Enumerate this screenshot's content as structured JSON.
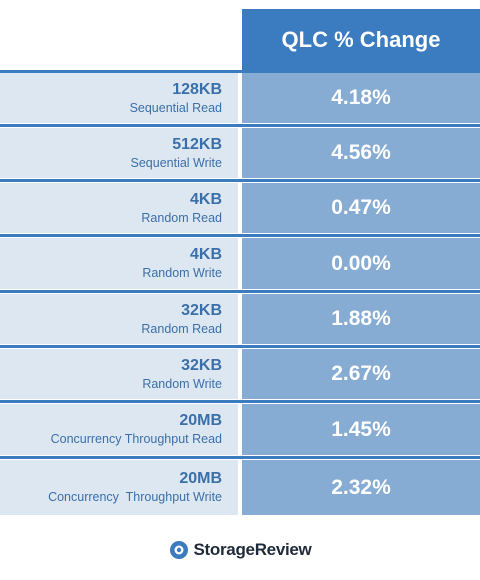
{
  "chart_data": {
    "type": "table",
    "header": "QLC % Change",
    "rows": [
      {
        "size": "128KB",
        "workload": "Sequential Read",
        "value": "4.18%"
      },
      {
        "size": "512KB",
        "workload": "Sequential Write",
        "value": "4.56%"
      },
      {
        "size": "4KB",
        "workload": "Random Read",
        "value": "0.47%"
      },
      {
        "size": "4KB",
        "workload": "Random Write",
        "value": "0.00%"
      },
      {
        "size": "32KB",
        "workload": "Random Read",
        "value": "1.88%"
      },
      {
        "size": "32KB",
        "workload": "Random Write",
        "value": "2.67%"
      },
      {
        "size": "20MB",
        "workload": "Concurrency Throughput Read",
        "value": "1.45%"
      },
      {
        "size": "20MB",
        "workload": "Concurrency  Throughput Write",
        "value": "2.32%"
      }
    ]
  },
  "footer": {
    "brand": "StorageReview"
  },
  "colors": {
    "header": "#3b7bbf",
    "label_bg": "#dce7f2",
    "value_bg": "#87acd3",
    "label_text": "#3b6fa8"
  }
}
